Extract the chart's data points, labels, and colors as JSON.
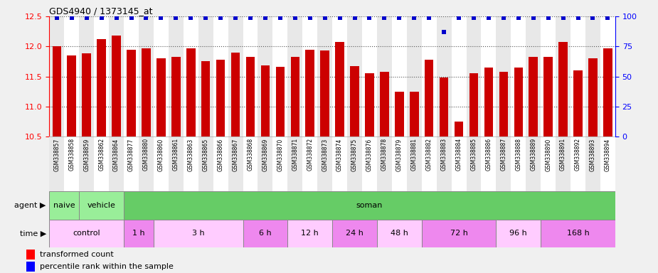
{
  "title": "GDS4940 / 1373145_at",
  "samples": [
    "GSM338857",
    "GSM338858",
    "GSM338859",
    "GSM338862",
    "GSM338864",
    "GSM338877",
    "GSM338880",
    "GSM338860",
    "GSM338861",
    "GSM338863",
    "GSM338865",
    "GSM338866",
    "GSM338867",
    "GSM338868",
    "GSM338869",
    "GSM338870",
    "GSM338871",
    "GSM338872",
    "GSM338873",
    "GSM338874",
    "GSM338875",
    "GSM338876",
    "GSM338878",
    "GSM338879",
    "GSM338881",
    "GSM338882",
    "GSM338883",
    "GSM338884",
    "GSM338885",
    "GSM338886",
    "GSM338887",
    "GSM338888",
    "GSM338889",
    "GSM338890",
    "GSM338891",
    "GSM338892",
    "GSM338893",
    "GSM338894"
  ],
  "bar_values": [
    12.0,
    11.85,
    11.88,
    12.12,
    12.18,
    11.95,
    11.97,
    11.8,
    11.82,
    11.97,
    11.75,
    11.78,
    11.9,
    11.82,
    11.68,
    11.66,
    11.82,
    11.95,
    11.93,
    12.07,
    11.67,
    11.55,
    11.58,
    11.25,
    11.25,
    11.78,
    11.48,
    10.75,
    11.55,
    11.65,
    11.58,
    11.65,
    11.82,
    11.82,
    12.08,
    11.6,
    11.8,
    11.97
  ],
  "percentile_values": [
    99,
    99,
    99,
    99,
    99,
    99,
    99,
    99,
    99,
    99,
    99,
    99,
    99,
    99,
    99,
    99,
    99,
    99,
    99,
    99,
    99,
    99,
    99,
    99,
    99,
    99,
    87,
    99,
    99,
    99,
    99,
    99,
    99,
    99,
    99,
    99,
    99,
    99
  ],
  "ylim": [
    10.5,
    12.5
  ],
  "yticks": [
    10.5,
    11.0,
    11.5,
    12.0,
    12.5
  ],
  "right_yticks": [
    0,
    25,
    50,
    75,
    100
  ],
  "bar_color": "#cc0000",
  "dot_color": "#0000cc",
  "agent_groups": [
    {
      "label": "naive",
      "start": 0,
      "end": 2,
      "color": "#99ee99"
    },
    {
      "label": "vehicle",
      "start": 2,
      "end": 5,
      "color": "#99ee99"
    },
    {
      "label": "soman",
      "start": 5,
      "end": 38,
      "color": "#66cc66"
    }
  ],
  "time_groups": [
    {
      "label": "control",
      "start": 0,
      "end": 5,
      "color": "#ffccff"
    },
    {
      "label": "1 h",
      "start": 5,
      "end": 7,
      "color": "#ee88ee"
    },
    {
      "label": "3 h",
      "start": 7,
      "end": 13,
      "color": "#ffccff"
    },
    {
      "label": "6 h",
      "start": 13,
      "end": 16,
      "color": "#ee88ee"
    },
    {
      "label": "12 h",
      "start": 16,
      "end": 19,
      "color": "#ffccff"
    },
    {
      "label": "24 h",
      "start": 19,
      "end": 22,
      "color": "#ee88ee"
    },
    {
      "label": "48 h",
      "start": 22,
      "end": 25,
      "color": "#ffccff"
    },
    {
      "label": "72 h",
      "start": 25,
      "end": 30,
      "color": "#ee88ee"
    },
    {
      "label": "96 h",
      "start": 30,
      "end": 33,
      "color": "#ffccff"
    },
    {
      "label": "168 h",
      "start": 33,
      "end": 38,
      "color": "#ee88ee"
    }
  ],
  "legend_red": "transformed count",
  "legend_blue": "percentile rank within the sample"
}
